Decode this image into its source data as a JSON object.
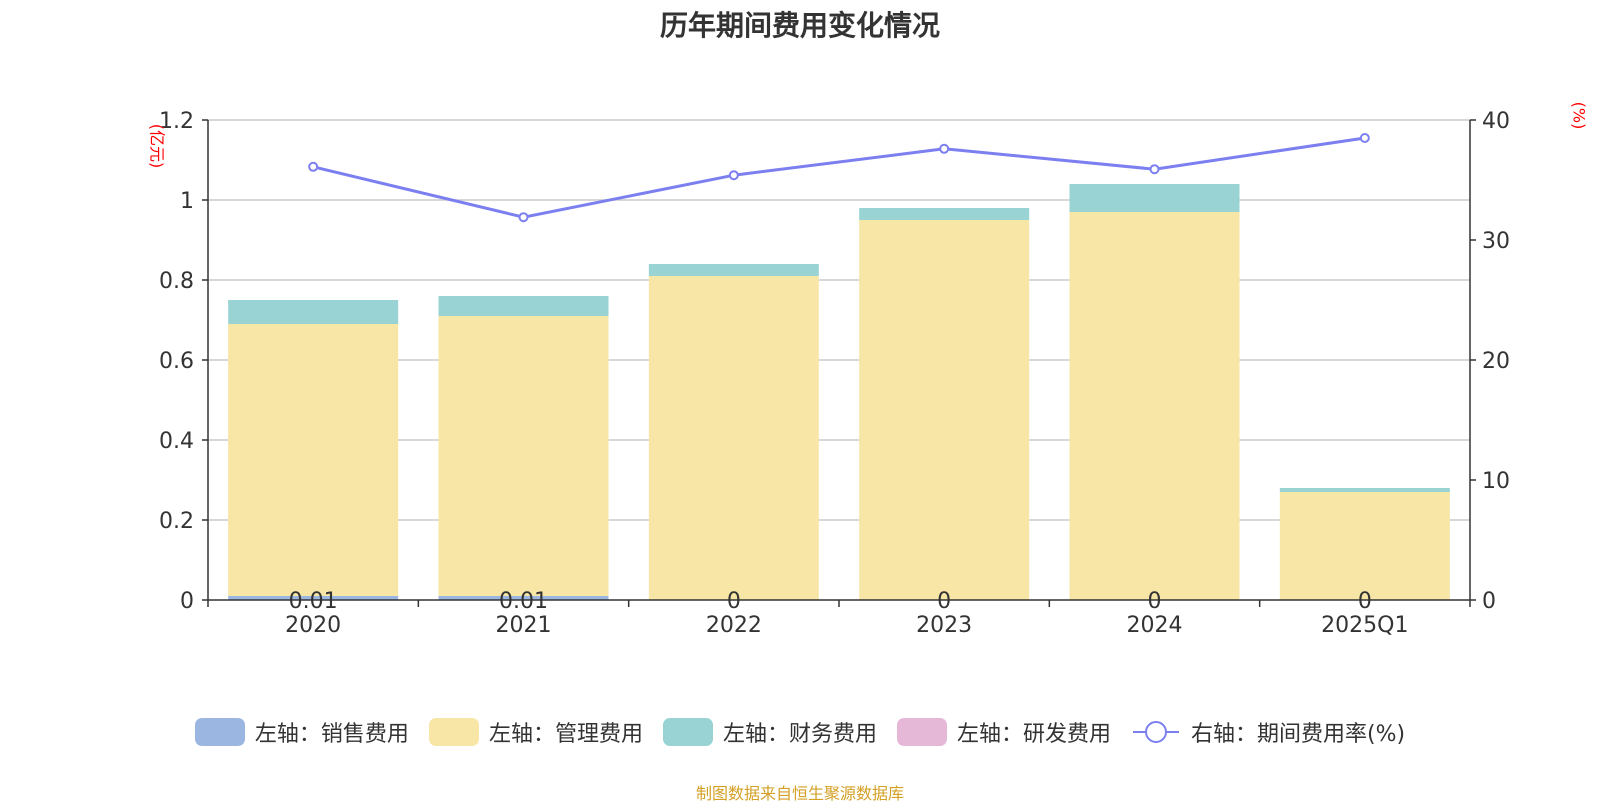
{
  "title": "历年期间费用变化情况",
  "left_unit": "(亿元)",
  "right_unit": "(%)",
  "source": "制图数据来自恒生聚源数据库",
  "colors": {
    "sales": "#9cb6e2",
    "admin": "#f7e6a6",
    "finance": "#99d3d3",
    "rd": "#e6b8d8",
    "rate": "#7b7ff0"
  },
  "chart_data": {
    "type": "bar",
    "stacked": true,
    "categories": [
      "2020",
      "2021",
      "2022",
      "2023",
      "2024",
      "2025Q1"
    ],
    "series": [
      {
        "name": "左轴：销售费用",
        "axis": "left",
        "type": "bar",
        "color": "#9cb6e2",
        "values": [
          0.01,
          0.01,
          0,
          0,
          0,
          0
        ]
      },
      {
        "name": "左轴：管理费用",
        "axis": "left",
        "type": "bar",
        "color": "#f7e6a6",
        "values": [
          0.68,
          0.7,
          0.81,
          0.95,
          0.97,
          0.27
        ]
      },
      {
        "name": "左轴：财务费用",
        "axis": "left",
        "type": "bar",
        "color": "#99d3d3",
        "values": [
          0.06,
          0.05,
          0.03,
          0.03,
          0.07,
          0.01
        ]
      },
      {
        "name": "左轴：研发费用",
        "axis": "left",
        "type": "bar",
        "color": "#e6b8d8",
        "values": [
          0,
          0,
          0,
          0,
          0,
          0
        ]
      },
      {
        "name": "右轴：期间费用率(%)",
        "axis": "right",
        "type": "line",
        "color": "#7b7ff0",
        "values": [
          36.1,
          31.9,
          35.4,
          37.6,
          35.9,
          38.5
        ]
      }
    ],
    "sales_labels": [
      "0.01",
      "0.01",
      "0",
      "0",
      "0",
      "0"
    ],
    "left_axis": {
      "ylim": [
        0,
        1.2
      ],
      "ticks": [
        "0",
        "0.2",
        "0.4",
        "0.6",
        "0.8",
        "1",
        "1.2"
      ],
      "tick_values": [
        0,
        0.2,
        0.4,
        0.6,
        0.8,
        1,
        1.2
      ]
    },
    "right_axis": {
      "ylim": [
        0,
        40
      ],
      "ticks": [
        "0",
        "10",
        "20",
        "30",
        "40"
      ],
      "tick_values": [
        0,
        10,
        20,
        30,
        40
      ]
    },
    "grid": true,
    "legend_position": "bottom"
  }
}
